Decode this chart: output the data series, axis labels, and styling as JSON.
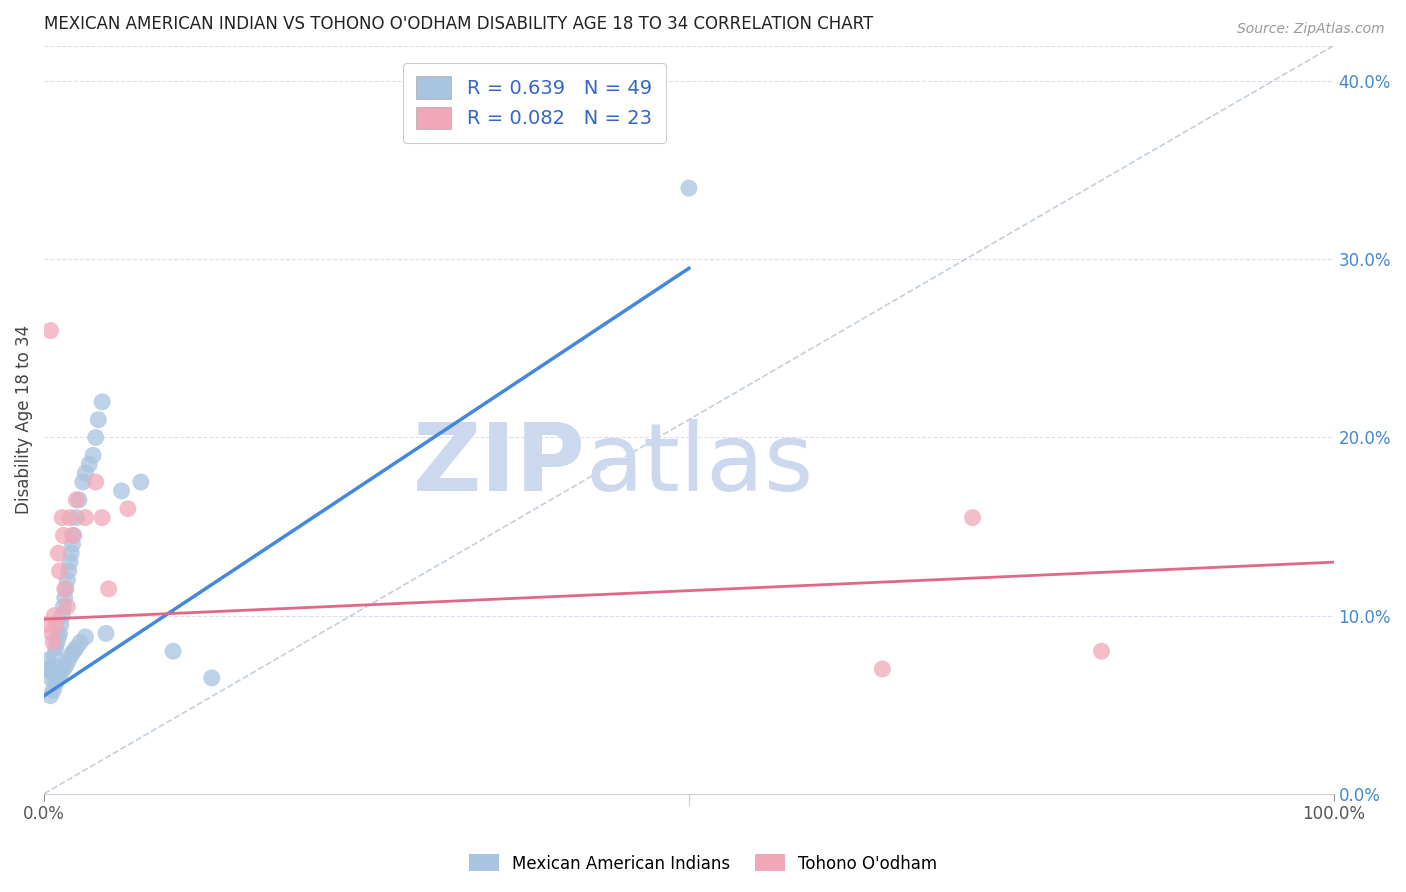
{
  "title": "MEXICAN AMERICAN INDIAN VS TOHONO O'ODHAM DISABILITY AGE 18 TO 34 CORRELATION CHART",
  "source": "Source: ZipAtlas.com",
  "ylabel": "Disability Age 18 to 34",
  "xlim": [
    0.0,
    1.0
  ],
  "ylim": [
    0.0,
    0.42
  ],
  "y_ticks_right": [
    0.0,
    0.1,
    0.2,
    0.3,
    0.4
  ],
  "blue_R": 0.639,
  "blue_N": 49,
  "pink_R": 0.082,
  "pink_N": 23,
  "blue_color": "#a8c4e0",
  "blue_line_color": "#4488dd",
  "pink_color": "#f0a8b8",
  "pink_line_color": "#e06888",
  "watermark_zip": "ZIP",
  "watermark_atlas": "atlas",
  "watermark_color": "#ccd8ee",
  "blue_scatter_x": [
    0.003,
    0.004,
    0.005,
    0.006,
    0.007,
    0.008,
    0.009,
    0.01,
    0.011,
    0.012,
    0.013,
    0.014,
    0.015,
    0.016,
    0.017,
    0.018,
    0.019,
    0.02,
    0.021,
    0.022,
    0.023,
    0.025,
    0.027,
    0.03,
    0.032,
    0.035,
    0.038,
    0.04,
    0.042,
    0.045,
    0.005,
    0.007,
    0.009,
    0.011,
    0.013,
    0.015,
    0.017,
    0.019,
    0.021,
    0.023,
    0.025,
    0.028,
    0.032,
    0.048,
    0.06,
    0.075,
    0.1,
    0.13,
    0.5
  ],
  "blue_scatter_y": [
    0.075,
    0.07,
    0.065,
    0.068,
    0.072,
    0.078,
    0.082,
    0.085,
    0.088,
    0.09,
    0.095,
    0.1,
    0.105,
    0.11,
    0.115,
    0.12,
    0.125,
    0.13,
    0.135,
    0.14,
    0.145,
    0.155,
    0.165,
    0.175,
    0.18,
    0.185,
    0.19,
    0.2,
    0.21,
    0.22,
    0.055,
    0.058,
    0.062,
    0.065,
    0.068,
    0.07,
    0.072,
    0.075,
    0.078,
    0.08,
    0.082,
    0.085,
    0.088,
    0.09,
    0.17,
    0.175,
    0.08,
    0.065,
    0.34
  ],
  "pink_scatter_x": [
    0.003,
    0.005,
    0.006,
    0.007,
    0.008,
    0.009,
    0.011,
    0.012,
    0.014,
    0.015,
    0.016,
    0.018,
    0.02,
    0.022,
    0.025,
    0.032,
    0.04,
    0.045,
    0.05,
    0.065,
    0.65,
    0.72,
    0.82
  ],
  "pink_scatter_y": [
    0.095,
    0.26,
    0.09,
    0.085,
    0.1,
    0.095,
    0.135,
    0.125,
    0.155,
    0.145,
    0.115,
    0.105,
    0.155,
    0.145,
    0.165,
    0.155,
    0.175,
    0.155,
    0.115,
    0.16,
    0.07,
    0.155,
    0.08
  ],
  "blue_line_x": [
    0.0,
    0.5
  ],
  "blue_line_y": [
    0.055,
    0.295
  ],
  "pink_line_x": [
    0.0,
    1.0
  ],
  "pink_line_y": [
    0.098,
    0.13
  ],
  "ref_line_x": [
    0.0,
    1.0
  ],
  "ref_line_y": [
    0.0,
    0.42
  ],
  "background_color": "#ffffff",
  "grid_color": "#ddddee"
}
